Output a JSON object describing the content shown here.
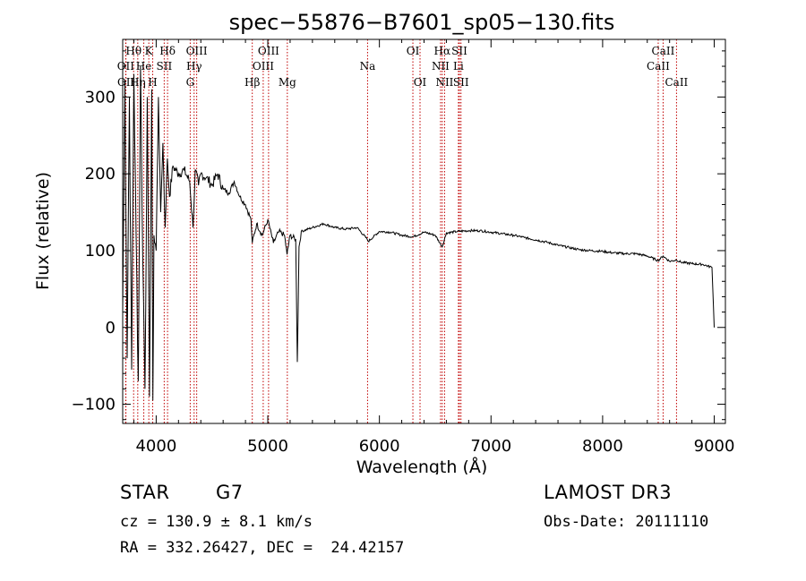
{
  "chart_data": {
    "type": "line",
    "title": "spec−55876−B7601_sp05−130.fits",
    "xlabel": "Wavelength (Å)",
    "ylabel": "Flux (relative)",
    "xlim": [
      3700,
      9100
    ],
    "ylim": [
      -125,
      375
    ],
    "xticks": [
      4000,
      5000,
      6000,
      7000,
      8000,
      9000
    ],
    "yticks": [
      -100,
      0,
      100,
      200,
      300
    ],
    "grid": false,
    "series": [
      {
        "name": "flux",
        "x": [
          3700,
          3720,
          3740,
          3760,
          3780,
          3800,
          3820,
          3840,
          3860,
          3880,
          3900,
          3920,
          3940,
          3960,
          3970,
          3980,
          4000,
          4020,
          4040,
          4060,
          4080,
          4100,
          4120,
          4150,
          4200,
          4250,
          4300,
          4330,
          4350,
          4380,
          4400,
          4450,
          4500,
          4550,
          4600,
          4650,
          4700,
          4750,
          4800,
          4850,
          4861,
          4900,
          4950,
          5000,
          5050,
          5100,
          5150,
          5172,
          5200,
          5250,
          5265,
          5280,
          5300,
          5400,
          5500,
          5600,
          5700,
          5800,
          5890,
          5900,
          6000,
          6100,
          6200,
          6300,
          6400,
          6500,
          6563,
          6600,
          6700,
          6800,
          6900,
          7000,
          7100,
          7200,
          7300,
          7400,
          7500,
          7600,
          7700,
          7800,
          7900,
          8000,
          8100,
          8200,
          8300,
          8400,
          8498,
          8542,
          8600,
          8662,
          8700,
          8800,
          8900,
          8980,
          9000
        ],
        "values": [
          20,
          320,
          -40,
          300,
          -55,
          330,
          120,
          -70,
          340,
          90,
          -80,
          300,
          -90,
          310,
          -95,
          120,
          100,
          300,
          150,
          240,
          130,
          220,
          170,
          210,
          200,
          205,
          190,
          130,
          205,
          185,
          200,
          195,
          185,
          200,
          180,
          175,
          190,
          170,
          160,
          140,
          110,
          135,
          120,
          140,
          110,
          125,
          120,
          95,
          120,
          115,
          -45,
          105,
          125,
          130,
          135,
          130,
          128,
          130,
          115,
          112,
          125,
          124,
          120,
          118,
          124,
          120,
          105,
          123,
          125,
          126,
          126,
          124,
          122,
          120,
          117,
          114,
          111,
          107,
          104,
          101,
          100,
          99,
          97,
          96,
          96,
          93,
          87,
          93,
          86,
          88,
          85,
          83,
          82,
          78,
          0
        ]
      }
    ],
    "lines": [
      {
        "label": "OII",
        "wl": 3727,
        "row": 2
      },
      {
        "label": "OII",
        "wl": 3729,
        "row": 3
      },
      {
        "label": "Hθ",
        "wl": 3798,
        "row": 1
      },
      {
        "label": "Hη",
        "wl": 3835,
        "row": 3
      },
      {
        "label": "He",
        "wl": 3889,
        "row": 2
      },
      {
        "label": "K",
        "wl": 3934,
        "row": 1
      },
      {
        "label": "H",
        "wl": 3969,
        "row": 3
      },
      {
        "label": "Hδ",
        "wl": 4102,
        "row": 1
      },
      {
        "label": "SII",
        "wl": 4072,
        "row": 2
      },
      {
        "label": "OIII",
        "wl": 4363,
        "row": 1
      },
      {
        "label": "Hγ",
        "wl": 4340,
        "row": 2
      },
      {
        "label": "G",
        "wl": 4305,
        "row": 3
      },
      {
        "label": "Hβ",
        "wl": 4861,
        "row": 3
      },
      {
        "label": "OIII",
        "wl": 5007,
        "row": 1
      },
      {
        "label": "OIII",
        "wl": 4959,
        "row": 2
      },
      {
        "label": "Mg",
        "wl": 5175,
        "row": 3
      },
      {
        "label": "Na",
        "wl": 5894,
        "row": 2
      },
      {
        "label": "OI",
        "wl": 6300,
        "row": 1
      },
      {
        "label": "OI",
        "wl": 6364,
        "row": 3
      },
      {
        "label": "Hα",
        "wl": 6563,
        "row": 1
      },
      {
        "label": "NII",
        "wl": 6548,
        "row": 2
      },
      {
        "label": "NII",
        "wl": 6584,
        "row": 3
      },
      {
        "label": "SII",
        "wl": 6717,
        "row": 1
      },
      {
        "label": "Li",
        "wl": 6708,
        "row": 2
      },
      {
        "label": "SII",
        "wl": 6731,
        "row": 3
      },
      {
        "label": "CaII",
        "wl": 8542,
        "row": 1
      },
      {
        "label": "CaII",
        "wl": 8498,
        "row": 2
      },
      {
        "label": "CaII",
        "wl": 8662,
        "row": 3
      }
    ]
  },
  "info": {
    "class": "STAR",
    "subclass": "G7",
    "survey": "LAMOST DR3",
    "cz": "cz = 130.9 ± 8.1 km/s",
    "obs_date": "Obs-Date: 20111110",
    "coords": "RA = 332.26427, DEC =  24.42157"
  },
  "colors": {
    "spectrum": "#000000",
    "line_marker": "#c00000"
  }
}
